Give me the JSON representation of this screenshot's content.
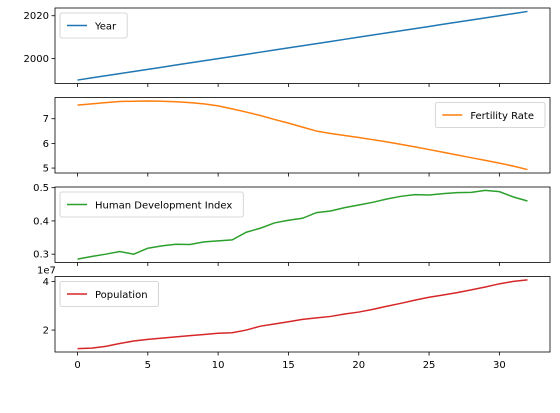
{
  "chart_data": [
    {
      "type": "line",
      "x": [
        0,
        1,
        2,
        3,
        4,
        5,
        6,
        7,
        8,
        9,
        10,
        11,
        12,
        13,
        14,
        15,
        16,
        17,
        18,
        19,
        20,
        21,
        22,
        23,
        24,
        25,
        26,
        27,
        28,
        29,
        30,
        31,
        32
      ],
      "series": [
        {
          "name": "Year",
          "color": "#1f77b4",
          "values": [
            1990,
            1991,
            1992,
            1993,
            1994,
            1995,
            1996,
            1997,
            1998,
            1999,
            2000,
            2001,
            2002,
            2003,
            2004,
            2005,
            2006,
            2007,
            2008,
            2009,
            2010,
            2011,
            2012,
            2013,
            2014,
            2015,
            2016,
            2017,
            2018,
            2019,
            2020,
            2021,
            2022
          ]
        }
      ],
      "xlim": [
        -1.6,
        33.6
      ],
      "xticks": [
        0,
        5,
        10,
        15,
        20,
        25,
        30
      ],
      "ylim": [
        1988.4,
        2023.6
      ],
      "yticks": [
        2000,
        2020
      ],
      "legend": "upper left"
    },
    {
      "type": "line",
      "x": [
        0,
        1,
        2,
        3,
        4,
        5,
        6,
        7,
        8,
        9,
        10,
        11,
        12,
        13,
        14,
        15,
        16,
        17,
        18,
        19,
        20,
        21,
        22,
        23,
        24,
        25,
        26,
        27,
        28,
        29,
        30,
        31,
        32
      ],
      "series": [
        {
          "name": "Fertility Rate",
          "color": "#ff7f0e",
          "values": [
            7.55,
            7.6,
            7.65,
            7.7,
            7.71,
            7.72,
            7.71,
            7.69,
            7.65,
            7.6,
            7.52,
            7.4,
            7.27,
            7.13,
            6.97,
            6.82,
            6.66,
            6.5,
            6.4,
            6.32,
            6.24,
            6.15,
            6.06,
            5.96,
            5.86,
            5.75,
            5.64,
            5.53,
            5.42,
            5.31,
            5.2,
            5.08,
            4.94
          ]
        }
      ],
      "xlim": [
        -1.6,
        33.6
      ],
      "xticks": [
        0,
        5,
        10,
        15,
        20,
        25,
        30
      ],
      "ylim": [
        4.8,
        7.86
      ],
      "yticks": [
        5,
        6,
        7
      ],
      "legend": "upper right"
    },
    {
      "type": "line",
      "x": [
        0,
        1,
        2,
        3,
        4,
        5,
        6,
        7,
        8,
        9,
        10,
        11,
        12,
        13,
        14,
        15,
        16,
        17,
        18,
        19,
        20,
        21,
        22,
        23,
        24,
        25,
        26,
        27,
        28,
        29,
        30,
        31,
        32
      ],
      "series": [
        {
          "name": "Human Development Index",
          "color": "#2ca02c",
          "values": [
            0.285,
            0.293,
            0.3,
            0.308,
            0.3,
            0.318,
            0.325,
            0.33,
            0.329,
            0.337,
            0.34,
            0.343,
            0.366,
            0.378,
            0.394,
            0.402,
            0.408,
            0.425,
            0.43,
            0.44,
            0.448,
            0.456,
            0.466,
            0.474,
            0.479,
            0.478,
            0.482,
            0.485,
            0.486,
            0.492,
            0.488,
            0.472,
            0.46
          ]
        }
      ],
      "xlim": [
        -1.6,
        33.6
      ],
      "xticks": [
        0,
        5,
        10,
        15,
        20,
        25,
        30
      ],
      "ylim": [
        0.275,
        0.502
      ],
      "yticks": [
        0.3,
        0.4,
        0.5
      ],
      "legend": "upper left"
    },
    {
      "type": "line",
      "x": [
        0,
        1,
        2,
        3,
        4,
        5,
        6,
        7,
        8,
        9,
        10,
        11,
        12,
        13,
        14,
        15,
        16,
        17,
        18,
        19,
        20,
        21,
        22,
        23,
        24,
        25,
        26,
        27,
        28,
        29,
        30,
        31,
        32
      ],
      "series": [
        {
          "name": "Population",
          "color": "#d62728",
          "values": [
            12400000,
            12600000,
            13300000,
            14500000,
            15500000,
            16200000,
            16700000,
            17200000,
            17700000,
            18200000,
            18700000,
            18900000,
            20000000,
            21600000,
            22500000,
            23400000,
            24400000,
            25000000,
            25600000,
            26600000,
            27400000,
            28500000,
            29800000,
            31000000,
            32300000,
            33500000,
            34400000,
            35400000,
            36500000,
            37700000,
            39000000,
            40000000,
            40600000
          ]
        }
      ],
      "xlim": [
        -1.6,
        33.6
      ],
      "xticks": [
        0,
        5,
        10,
        15,
        20,
        25,
        30
      ],
      "ylim": [
        10990000,
        42010000
      ],
      "yticks": [
        {
          "value": 20000000,
          "label": "2"
        },
        {
          "value": 40000000,
          "label": "4"
        }
      ],
      "y_offset_label": "1e7",
      "legend": "upper left"
    }
  ]
}
